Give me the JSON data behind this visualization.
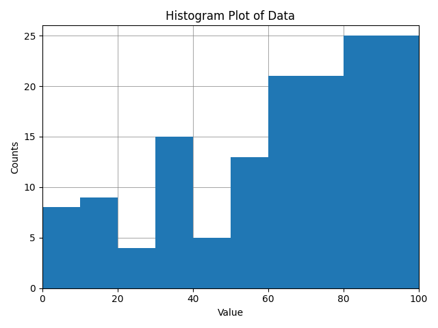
{
  "title": "Histogram Plot of Data",
  "xlabel": "Value",
  "ylabel": "Counts",
  "bar_color": "#2077b4",
  "bins": [
    0,
    10,
    20,
    30,
    40,
    50,
    60,
    80,
    100
  ],
  "counts": [
    8,
    9,
    4,
    15,
    5,
    13,
    21,
    25
  ],
  "xlim": [
    0,
    100
  ],
  "ylim": [
    0,
    26
  ],
  "yticks": [
    0,
    5,
    10,
    15,
    20,
    25
  ],
  "xticks": [
    0,
    20,
    40,
    60,
    80,
    100
  ],
  "grid": true,
  "figsize": [
    6.4,
    4.8
  ],
  "dpi": 100
}
